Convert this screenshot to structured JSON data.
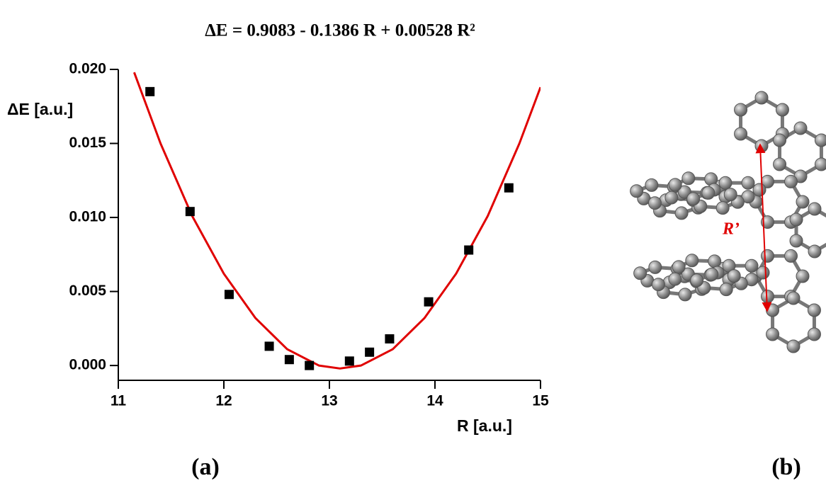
{
  "chart_data": {
    "type": "scatter",
    "title": "ΔE = 0.9083 - 0.1386 R + 0.00528 R²",
    "x_label": "R [a.u.]",
    "y_label": "ΔE [a.u.]",
    "xlim": [
      11,
      15
    ],
    "ylim": [
      -0.001,
      0.02
    ],
    "xticks": [
      11,
      12,
      13,
      14,
      15
    ],
    "yticks": [
      {
        "value": 0,
        "label": "0.000"
      },
      {
        "value": 0.005,
        "label": "0.005"
      },
      {
        "value": 0.01,
        "label": "0.010"
      },
      {
        "value": 0.015,
        "label": "0.015"
      },
      {
        "value": 0.02,
        "label": "0.020"
      }
    ],
    "series": [
      {
        "type": "scatter",
        "color": "#000000",
        "x": [
          11.3,
          11.68,
          12.05,
          12.43,
          12.62,
          12.81,
          13.19,
          13.38,
          13.57,
          13.94,
          14.32,
          14.7
        ],
        "values": [
          0.0185,
          0.0104,
          0.0048,
          0.0013,
          0.0004,
          0.0,
          0.0003,
          0.0009,
          0.0018,
          0.0043,
          0.0078,
          0.012
        ]
      },
      {
        "type": "line",
        "color": "#e00000",
        "x": [
          11.15,
          11.4,
          11.7,
          12.0,
          12.3,
          12.6,
          12.9,
          13.1,
          13.3,
          13.6,
          13.9,
          14.2,
          14.5,
          14.8,
          15.0
        ],
        "values": [
          0.0198,
          0.015,
          0.0101,
          0.0062,
          0.0032,
          0.0011,
          0.0,
          -0.0002,
          0.0,
          0.0011,
          0.0032,
          0.0062,
          0.0101,
          0.015,
          0.0188
        ]
      }
    ],
    "annotations": {
      "panel_a": "(a)",
      "panel_b": "(b)",
      "distance": "R’"
    }
  }
}
